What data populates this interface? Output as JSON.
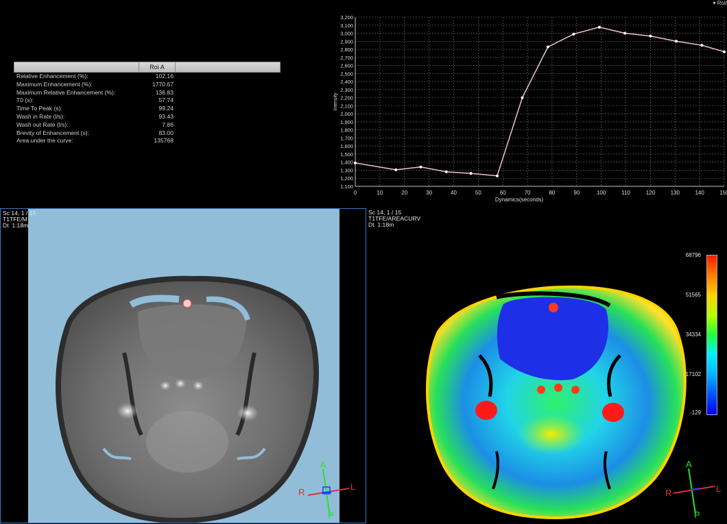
{
  "results_table": {
    "column_header": "Roi A",
    "rows": [
      {
        "label": "Relative Enhancement (%):",
        "value": "102.16"
      },
      {
        "label": "Maximum Enhancement  (%):",
        "value": "1770.67"
      },
      {
        "label": "Maximum Relative Enhancement (%):",
        "value": "136.83"
      },
      {
        "label": "T0 (s):",
        "value": "57.74"
      },
      {
        "label": "Time To Peak  (s):",
        "value": "99.24"
      },
      {
        "label": "Wash in Rate  (l/s):",
        "value": "93.43"
      },
      {
        "label": "Wash out Rate  (l/s):",
        "value": "7.86"
      },
      {
        "label": "Brevity of Enhancement  (s):",
        "value": "83.00"
      },
      {
        "label": "Area under the curve:",
        "value": "135768"
      }
    ]
  },
  "chart_menu": "▾ Rol/",
  "chart_data": {
    "type": "line",
    "xlabel": "Dynamics(seconds)",
    "ylabel": "Intensity",
    "xlim": [
      0,
      150
    ],
    "ylim": [
      1100,
      3200
    ],
    "x_ticks": [
      0,
      10,
      20,
      30,
      40,
      50,
      60,
      70,
      80,
      90,
      100,
      110,
      120,
      130,
      140,
      150
    ],
    "y_ticks": [
      "1,100",
      "1,200",
      "1,300",
      "1,400",
      "1,500",
      "1,600",
      "1,700",
      "1,800",
      "1,900",
      "2,000",
      "2,100",
      "2,200",
      "2,300",
      "2,400",
      "2,500",
      "2,600",
      "2,700",
      "2,800",
      "2,900",
      "3,000",
      "3,100",
      "3,200"
    ],
    "grid": true,
    "line_color": "#f2c4cc",
    "series": [
      {
        "x": [
          0,
          16.5,
          26.6,
          37,
          47,
          57.7,
          67.9,
          78.3,
          88.8,
          99.2,
          109.6,
          120,
          130.5,
          140.9,
          150
        ],
        "y": [
          1390,
          1305,
          1340,
          1280,
          1260,
          1230,
          2200,
          2830,
          2990,
          3075,
          3000,
          2965,
          2900,
          2850,
          2770
        ]
      }
    ]
  },
  "viewport_left": {
    "info": [
      "Sc 14, 1 / 15",
      "T1TFE/M",
      "Dt  1:18m"
    ],
    "orientation": {
      "a": "A",
      "p": "P",
      "r": "R",
      "l": "L"
    }
  },
  "viewport_right": {
    "info": [
      "Sc 14, 1 / 15",
      "T1TFE/AREACURV",
      "Dt  1:18m"
    ],
    "colorbar_labels": [
      "68796",
      "51565",
      "34334",
      "17102",
      "-129"
    ],
    "orientation": {
      "a": "A",
      "p": "P",
      "r": "R",
      "l": "L"
    }
  }
}
